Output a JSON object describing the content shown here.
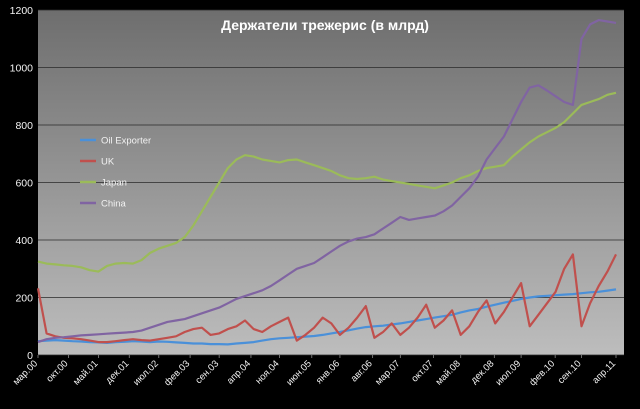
{
  "chart_data": {
    "type": "line",
    "title": "Держатели трежерис (в млрд)",
    "xlabel": "",
    "ylabel": "",
    "ylim": [
      0,
      1200
    ],
    "yticks": [
      0,
      200,
      400,
      600,
      800,
      1000,
      1200
    ],
    "grid": true,
    "legend_position": "left",
    "x_ticks": [
      "мар.00",
      "окт.00",
      "май.01",
      "дек.01",
      "июл.02",
      "фев.03",
      "сен.03",
      "апр.04",
      "ноя.04",
      "июн.05",
      "янв.06",
      "авг.06",
      "мар.07",
      "окт.07",
      "май.08",
      "дек.08",
      "июл.09",
      "фев.10",
      "сен.10",
      "апр.11"
    ],
    "x": [
      "мар.00",
      "май.00",
      "июл.00",
      "сен.00",
      "ноя.00",
      "янв.01",
      "мар.01",
      "май.01",
      "июл.01",
      "сен.01",
      "ноя.01",
      "янв.02",
      "мар.02",
      "май.02",
      "июл.02",
      "сен.02",
      "ноя.02",
      "янв.03",
      "мар.03",
      "май.03",
      "июл.03",
      "сен.03",
      "ноя.03",
      "янв.04",
      "мар.04",
      "май.04",
      "июл.04",
      "сен.04",
      "ноя.04",
      "янв.05",
      "мар.05",
      "май.05",
      "июл.05",
      "сен.05",
      "ноя.05",
      "янв.06",
      "мар.06",
      "май.06",
      "июл.06",
      "сен.06",
      "ноя.06",
      "янв.07",
      "мар.07",
      "май.07",
      "июл.07",
      "сен.07",
      "ноя.07",
      "янв.08",
      "мар.08",
      "май.08",
      "июл.08",
      "сен.08",
      "ноя.08",
      "янв.09",
      "мар.09",
      "май.09",
      "июл.09",
      "сен.09",
      "ноя.09",
      "янв.10",
      "мар.10",
      "май.10",
      "июл.10",
      "сен.10",
      "ноя.10",
      "янв.11",
      "мар.11",
      "май.11"
    ],
    "series": [
      {
        "name": "Oil Exporter",
        "color": "#4a90d9",
        "values": [
          48,
          50,
          52,
          50,
          48,
          47,
          45,
          44,
          42,
          45,
          46,
          48,
          47,
          45,
          47,
          46,
          44,
          42,
          40,
          40,
          38,
          38,
          37,
          40,
          42,
          45,
          50,
          55,
          58,
          60,
          62,
          64,
          66,
          70,
          75,
          80,
          86,
          92,
          97,
          100,
          102,
          106,
          110,
          115,
          120,
          125,
          130,
          135,
          140,
          148,
          155,
          160,
          168,
          175,
          182,
          188,
          195,
          200,
          204,
          206,
          208,
          210,
          212,
          215,
          218,
          220,
          224,
          228
        ]
      },
      {
        "name": "UK",
        "color": "#c0504d",
        "values": [
          232,
          75,
          65,
          60,
          58,
          55,
          50,
          45,
          45,
          48,
          52,
          55,
          52,
          50,
          55,
          60,
          65,
          80,
          90,
          95,
          70,
          75,
          90,
          100,
          120,
          90,
          80,
          100,
          115,
          130,
          50,
          70,
          95,
          130,
          110,
          70,
          95,
          130,
          170,
          60,
          80,
          110,
          70,
          95,
          130,
          175,
          95,
          120,
          155,
          70,
          100,
          150,
          190,
          110,
          150,
          200,
          250,
          100,
          140,
          180,
          220,
          300,
          350,
          100,
          180,
          240,
          290,
          350
        ]
      },
      {
        "name": "Japan",
        "color": "#9bbb59",
        "values": [
          325,
          318,
          315,
          312,
          310,
          305,
          295,
          290,
          310,
          318,
          320,
          318,
          330,
          355,
          370,
          380,
          390,
          410,
          450,
          500,
          550,
          600,
          650,
          680,
          695,
          690,
          680,
          675,
          670,
          678,
          680,
          670,
          660,
          650,
          640,
          625,
          615,
          612,
          615,
          620,
          610,
          605,
          600,
          595,
          590,
          585,
          580,
          590,
          600,
          615,
          625,
          640,
          650,
          655,
          660,
          690,
          715,
          740,
          760,
          775,
          790,
          810,
          840,
          870,
          880,
          890,
          905,
          912
        ]
      },
      {
        "name": "China",
        "color": "#8064a2",
        "values": [
          45,
          55,
          60,
          62,
          65,
          68,
          70,
          72,
          74,
          76,
          78,
          80,
          85,
          95,
          105,
          115,
          120,
          125,
          135,
          145,
          155,
          165,
          180,
          195,
          205,
          215,
          225,
          240,
          260,
          280,
          300,
          310,
          320,
          340,
          360,
          380,
          395,
          405,
          410,
          420,
          440,
          460,
          480,
          470,
          475,
          480,
          485,
          500,
          520,
          550,
          580,
          620,
          680,
          720,
          760,
          820,
          880,
          930,
          938,
          920,
          900,
          880,
          870,
          1100,
          1150,
          1165,
          1160,
          1155
        ]
      }
    ]
  }
}
